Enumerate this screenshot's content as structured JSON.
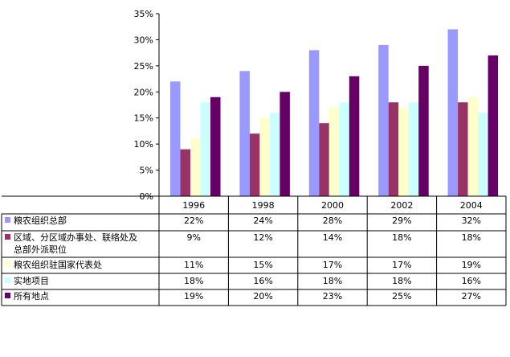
{
  "chart_data": {
    "type": "bar",
    "categories": [
      "1996",
      "1998",
      "2000",
      "2002",
      "2004"
    ],
    "ylim": [
      0,
      35
    ],
    "y_ticks": [
      "0%",
      "5%",
      "10%",
      "15%",
      "20%",
      "25%",
      "30%",
      "35%"
    ],
    "grid": false,
    "legend_placement": "data-table-left",
    "value_suffix": "%",
    "series": [
      {
        "name": "粮农组织总部",
        "color": "#9999ff",
        "values": [
          22,
          24,
          28,
          29,
          32
        ],
        "labels": [
          "22%",
          "24%",
          "28%",
          "29%",
          "32%"
        ]
      },
      {
        "name": "区域、分区域办事处、联络处及总部外派职位",
        "color": "#993366",
        "values": [
          9,
          12,
          14,
          18,
          18
        ],
        "labels": [
          "9%",
          "12%",
          "14%",
          "18%",
          "18%"
        ]
      },
      {
        "name": "粮农组织驻国家代表处",
        "color": "#ffffcc",
        "values": [
          11,
          15,
          17,
          17,
          19
        ],
        "labels": [
          "11%",
          "15%",
          "17%",
          "17%",
          "19%"
        ]
      },
      {
        "name": "实地项目",
        "color": "#ccffff",
        "values": [
          18,
          16,
          18,
          18,
          16
        ],
        "labels": [
          "18%",
          "16%",
          "18%",
          "18%",
          "16%"
        ]
      },
      {
        "name": "所有地点",
        "color": "#660066",
        "values": [
          19,
          20,
          23,
          25,
          27
        ],
        "labels": [
          "19%",
          "20%",
          "23%",
          "25%",
          "27%"
        ]
      }
    ]
  }
}
